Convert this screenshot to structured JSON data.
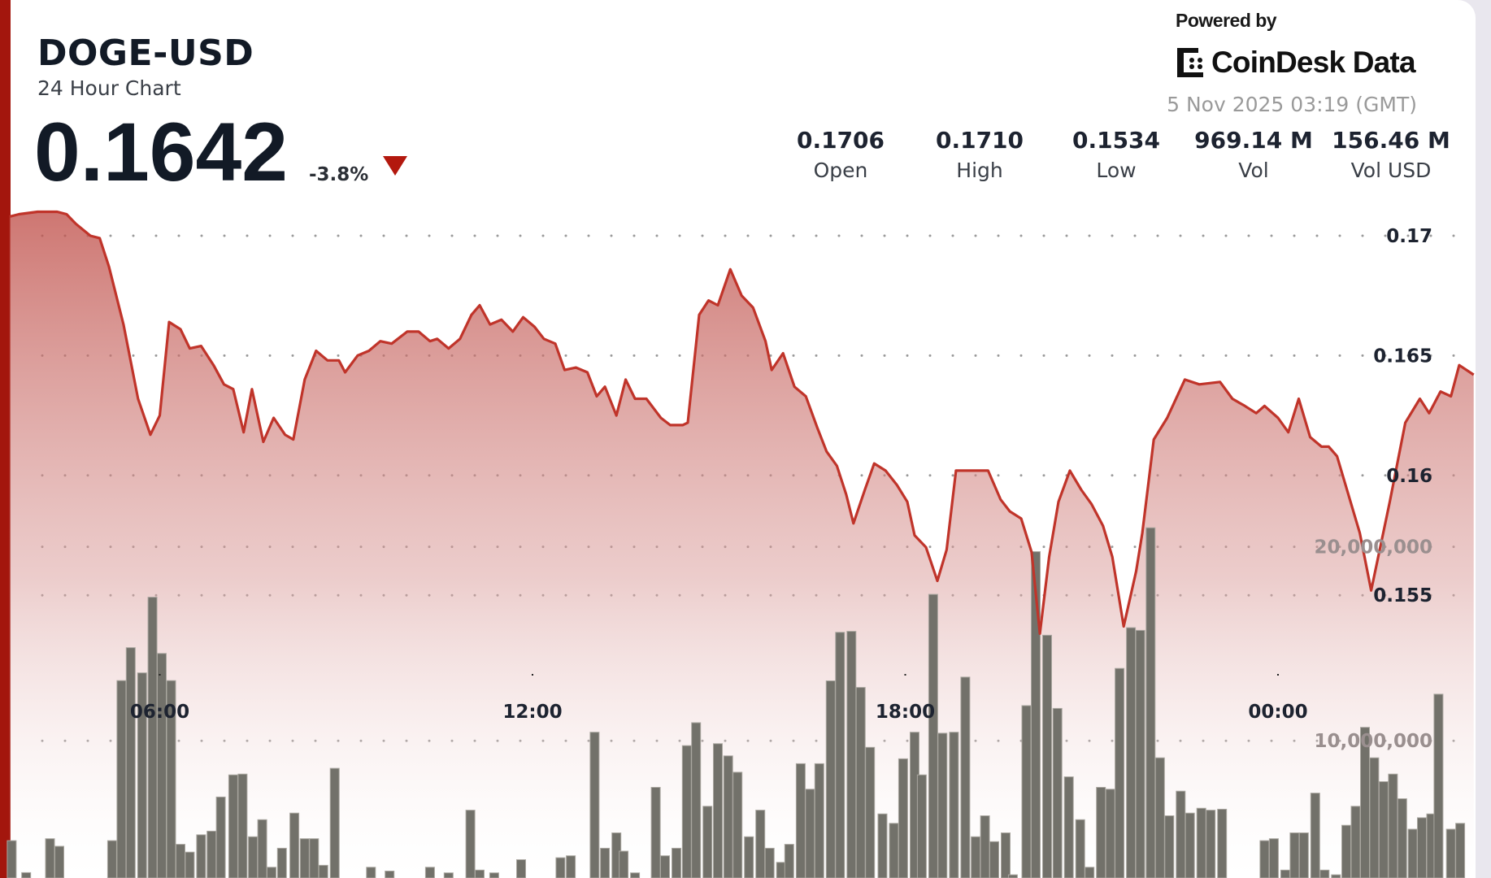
{
  "header": {
    "symbol": "DOGE-USD",
    "subtitle": "24 Hour Chart",
    "price": "0.1642",
    "change": "-3.8%",
    "change_direction": "down",
    "down_color": "#b3180e"
  },
  "branding": {
    "powered_by": "Powered by",
    "logo_text": "CoinDesk Data",
    "timestamp": "5 Nov 2025 03:19 (GMT)"
  },
  "stats": [
    {
      "value": "0.1706",
      "label": "Open"
    },
    {
      "value": "0.1710",
      "label": "High"
    },
    {
      "value": "0.1534",
      "label": "Low"
    },
    {
      "value": "969.14 M",
      "label": "Vol"
    },
    {
      "value": "156.46 M",
      "label": "Vol USD"
    }
  ],
  "chart_data": {
    "type": "area",
    "line_color": "#c0342a",
    "bar_color": "#72716a",
    "grid": "dotted",
    "price_axis": {
      "ticks": [
        0.155,
        0.16,
        0.165,
        0.17
      ],
      "labels": [
        "0.155",
        "0.16",
        "0.165",
        "0.17"
      ],
      "position": "right"
    },
    "volume_axis": {
      "ticks": [
        10000000,
        20000000
      ],
      "labels": [
        "10,000,000",
        "20,000,000"
      ],
      "position": "right"
    },
    "time_axis": {
      "ticks": [
        "06:00",
        "12:00",
        "18:00",
        "00:00"
      ]
    },
    "price": [
      [
        "03:35",
        0.1708
      ],
      [
        "03:44",
        0.1709
      ],
      [
        "04:02",
        0.171
      ],
      [
        "04:21",
        0.171
      ],
      [
        "04:30",
        0.1709
      ],
      [
        "04:39",
        0.1705
      ],
      [
        "04:53",
        0.17
      ],
      [
        "05:02",
        0.1699
      ],
      [
        "05:11",
        0.1687
      ],
      [
        "05:25",
        0.1663
      ],
      [
        "05:39",
        0.1632
      ],
      [
        "05:51",
        0.1617
      ],
      [
        "06:00",
        0.1625
      ],
      [
        "06:09",
        0.1664
      ],
      [
        "06:20",
        0.1661
      ],
      [
        "06:29",
        0.1653
      ],
      [
        "06:40",
        0.1654
      ],
      [
        "06:52",
        0.1646
      ],
      [
        "07:02",
        0.1638
      ],
      [
        "07:11",
        0.1636
      ],
      [
        "07:21",
        0.1618
      ],
      [
        "07:29",
        0.1636
      ],
      [
        "07:40",
        0.1614
      ],
      [
        "07:50",
        0.1624
      ],
      [
        "08:01",
        0.1617
      ],
      [
        "08:09",
        0.1615
      ],
      [
        "08:20",
        0.164
      ],
      [
        "08:31",
        0.1652
      ],
      [
        "08:42",
        0.1648
      ],
      [
        "08:53",
        0.1648
      ],
      [
        "08:59",
        0.1643
      ],
      [
        "09:11",
        0.165
      ],
      [
        "09:22",
        0.1652
      ],
      [
        "09:33",
        0.1656
      ],
      [
        "09:44",
        0.1655
      ],
      [
        "09:59",
        0.166
      ],
      [
        "10:10",
        0.166
      ],
      [
        "10:21",
        0.1656
      ],
      [
        "10:28",
        0.1657
      ],
      [
        "10:39",
        0.1653
      ],
      [
        "10:50",
        0.1657
      ],
      [
        "11:01",
        0.1667
      ],
      [
        "11:09",
        0.1671
      ],
      [
        "11:19",
        0.1663
      ],
      [
        "11:30",
        0.1665
      ],
      [
        "11:41",
        0.166
      ],
      [
        "11:51",
        0.1666
      ],
      [
        "12:02",
        0.1662
      ],
      [
        "12:11",
        0.1657
      ],
      [
        "12:22",
        0.1655
      ],
      [
        "12:31",
        0.1644
      ],
      [
        "12:42",
        0.1645
      ],
      [
        "12:53",
        0.1643
      ],
      [
        "13:02",
        0.1633
      ],
      [
        "13:10",
        0.1637
      ],
      [
        "13:21",
        0.1625
      ],
      [
        "13:30",
        0.164
      ],
      [
        "13:39",
        0.1632
      ],
      [
        "13:50",
        0.1632
      ],
      [
        "14:04",
        0.1624
      ],
      [
        "14:13",
        0.1621
      ],
      [
        "14:25",
        0.1621
      ],
      [
        "14:30",
        0.1622
      ],
      [
        "14:41",
        0.1667
      ],
      [
        "14:50",
        0.1673
      ],
      [
        "14:59",
        0.1671
      ],
      [
        "15:11",
        0.1686
      ],
      [
        "15:22",
        0.1675
      ],
      [
        "15:33",
        0.167
      ],
      [
        "15:45",
        0.1656
      ],
      [
        "15:51",
        0.1644
      ],
      [
        "16:02",
        0.1651
      ],
      [
        "16:13",
        0.1637
      ],
      [
        "16:24",
        0.1633
      ],
      [
        "16:35",
        0.162
      ],
      [
        "16:44",
        0.161
      ],
      [
        "16:54",
        0.1604
      ],
      [
        "17:03",
        0.1592
      ],
      [
        "17:10",
        0.158
      ],
      [
        "17:21",
        0.1594
      ],
      [
        "17:30",
        0.1605
      ],
      [
        "17:41",
        0.1602
      ],
      [
        "17:52",
        0.1596
      ],
      [
        "18:02",
        0.1589
      ],
      [
        "18:09",
        0.1575
      ],
      [
        "18:20",
        0.157
      ],
      [
        "18:31",
        0.1556
      ],
      [
        "18:40",
        0.1569
      ],
      [
        "18:49",
        0.1602
      ],
      [
        "19:07",
        0.1602
      ],
      [
        "19:20",
        0.1602
      ],
      [
        "19:32",
        0.159
      ],
      [
        "19:41",
        0.1585
      ],
      [
        "19:52",
        0.1582
      ],
      [
        "20:02",
        0.1568
      ],
      [
        "20:10",
        0.1534
      ],
      [
        "20:19",
        0.1566
      ],
      [
        "20:28",
        0.1589
      ],
      [
        "20:39",
        0.1602
      ],
      [
        "20:50",
        0.1594
      ],
      [
        "21:00",
        0.1588
      ],
      [
        "21:11",
        0.1579
      ],
      [
        "21:20",
        0.1566
      ],
      [
        "21:31",
        0.1537
      ],
      [
        "21:43",
        0.156
      ],
      [
        "21:49",
        0.1576
      ],
      [
        "22:00",
        0.1615
      ],
      [
        "22:13",
        0.1624
      ],
      [
        "22:30",
        0.164
      ],
      [
        "22:44",
        0.1638
      ],
      [
        "23:04",
        0.1639
      ],
      [
        "23:16",
        0.1632
      ],
      [
        "23:28",
        0.1629
      ],
      [
        "23:39",
        0.1626
      ],
      [
        "23:47",
        0.1629
      ],
      [
        "00:00",
        0.1624
      ],
      [
        "00:10",
        0.1618
      ],
      [
        "00:20",
        0.1632
      ],
      [
        "00:31",
        0.1616
      ],
      [
        "00:42",
        0.1612
      ],
      [
        "00:49",
        0.1612
      ],
      [
        "00:57",
        0.1608
      ],
      [
        "01:19",
        0.1576
      ],
      [
        "01:30",
        0.1552
      ],
      [
        "01:48",
        0.1589
      ],
      [
        "02:03",
        0.1622
      ],
      [
        "02:17",
        0.1632
      ],
      [
        "02:26",
        0.1626
      ],
      [
        "02:37",
        0.1635
      ],
      [
        "02:47",
        0.1633
      ],
      [
        "02:55",
        0.1646
      ],
      [
        "03:09",
        0.1642
      ]
    ],
    "volume": [
      [
        "03:37",
        4850000
      ],
      [
        "03:51",
        3200000
      ],
      [
        "04:14",
        4950000
      ],
      [
        "04:23",
        4560000
      ],
      [
        "05:14",
        4850000
      ],
      [
        "05:23",
        13100000
      ],
      [
        "05:32",
        14800000
      ],
      [
        "05:43",
        13500000
      ],
      [
        "05:53",
        17400000
      ],
      [
        "06:02",
        14500000
      ],
      [
        "06:11",
        13100000
      ],
      [
        "06:20",
        4660000
      ],
      [
        "06:29",
        4260000
      ],
      [
        "06:40",
        5150000
      ],
      [
        "06:50",
        5340000
      ],
      [
        "06:59",
        7100000
      ],
      [
        "07:11",
        8240000
      ],
      [
        "07:20",
        8280000
      ],
      [
        "07:30",
        5050000
      ],
      [
        "07:39",
        5930000
      ],
      [
        "07:48",
        3480000
      ],
      [
        "07:58",
        4460000
      ],
      [
        "08:10",
        6270000
      ],
      [
        "08:20",
        4950000
      ],
      [
        "08:29",
        4950000
      ],
      [
        "08:38",
        3580000
      ],
      [
        "08:49",
        8580000
      ],
      [
        "09:24",
        3480000
      ],
      [
        "09:42",
        3280000
      ],
      [
        "10:21",
        3480000
      ],
      [
        "10:39",
        3190000
      ],
      [
        "11:00",
        6420000
      ],
      [
        "11:09",
        3330000
      ],
      [
        "11:23",
        3190000
      ],
      [
        "11:49",
        3870000
      ],
      [
        "12:27",
        3970000
      ],
      [
        "12:37",
        4070000
      ],
      [
        "13:00",
        10440000
      ],
      [
        "13:10",
        4460000
      ],
      [
        "13:21",
        5250000
      ],
      [
        "13:28",
        4310000
      ],
      [
        "13:39",
        3190000
      ],
      [
        "13:59",
        7600000
      ],
      [
        "14:08",
        4070000
      ],
      [
        "14:19",
        4460000
      ],
      [
        "14:29",
        9750000
      ],
      [
        "14:38",
        10930000
      ],
      [
        "14:49",
        6620000
      ],
      [
        "14:59",
        9850000
      ],
      [
        "15:09",
        9220000
      ],
      [
        "15:18",
        8380000
      ],
      [
        "15:29",
        5050000
      ],
      [
        "15:40",
        6420000
      ],
      [
        "15:49",
        4460000
      ],
      [
        "16:00",
        3730000
      ],
      [
        "16:08",
        4660000
      ],
      [
        "16:19",
        8820000
      ],
      [
        "16:28",
        7500000
      ],
      [
        "16:37",
        8820000
      ],
      [
        "16:48",
        13090000
      ],
      [
        "16:57",
        15590000
      ],
      [
        "17:08",
        15640000
      ],
      [
        "17:17",
        12750000
      ],
      [
        "17:26",
        9660000
      ],
      [
        "17:38",
        6230000
      ],
      [
        "17:49",
        5740000
      ],
      [
        "17:58",
        9070000
      ],
      [
        "18:09",
        10440000
      ],
      [
        "18:16",
        8240000
      ],
      [
        "18:27",
        17550000
      ],
      [
        "18:36",
        10390000
      ],
      [
        "18:47",
        10440000
      ],
      [
        "18:58",
        13280000
      ],
      [
        "19:08",
        5050000
      ],
      [
        "19:17",
        6130000
      ],
      [
        "19:26",
        4800000
      ],
      [
        "19:37",
        5250000
      ],
      [
        "19:44",
        3090000
      ],
      [
        "19:57",
        11810000
      ],
      [
        "20:06",
        19750000
      ],
      [
        "20:17",
        15440000
      ],
      [
        "20:27",
        11670000
      ],
      [
        "20:38",
        8140000
      ],
      [
        "20:49",
        5930000
      ],
      [
        "20:58",
        3480000
      ],
      [
        "21:09",
        7600000
      ],
      [
        "21:18",
        7500000
      ],
      [
        "21:27",
        13730000
      ],
      [
        "21:38",
        15830000
      ],
      [
        "21:47",
        15690000
      ],
      [
        "21:57",
        20980000
      ],
      [
        "22:06",
        9120000
      ],
      [
        "22:15",
        6130000
      ],
      [
        "22:26",
        7400000
      ],
      [
        "22:35",
        6270000
      ],
      [
        "22:46",
        6520000
      ],
      [
        "22:55",
        6420000
      ],
      [
        "23:06",
        6470000
      ],
      [
        "23:47",
        4850000
      ],
      [
        "23:56",
        4950000
      ],
      [
        "00:07",
        3330000
      ],
      [
        "00:16",
        5250000
      ],
      [
        "00:25",
        5250000
      ],
      [
        "00:36",
        7300000
      ],
      [
        "00:45",
        3330000
      ],
      [
        "00:56",
        3090000
      ],
      [
        "01:06",
        5640000
      ],
      [
        "01:15",
        6620000
      ],
      [
        "01:24",
        10690000
      ],
      [
        "01:33",
        9120000
      ],
      [
        "01:42",
        7890000
      ],
      [
        "01:51",
        8280000
      ],
      [
        "02:00",
        7010000
      ],
      [
        "02:10",
        5440000
      ],
      [
        "02:19",
        6030000
      ],
      [
        "02:28",
        6230000
      ],
      [
        "02:35",
        12400000
      ],
      [
        "02:47",
        5440000
      ],
      [
        "02:56",
        5740000
      ]
    ]
  }
}
